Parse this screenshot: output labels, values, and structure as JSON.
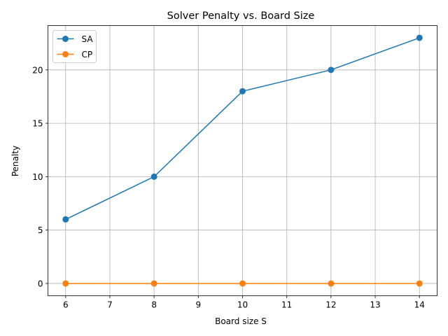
{
  "chart_data": {
    "type": "line",
    "title": "Solver Penalty vs. Board Size",
    "xlabel": "Board size S",
    "ylabel": "Penalty",
    "x": [
      6,
      8,
      10,
      12,
      14
    ],
    "xlim": [
      5.6,
      14.4
    ],
    "ylim": [
      -1.15,
      24.15
    ],
    "xticks": [
      6,
      7,
      8,
      9,
      10,
      11,
      12,
      13,
      14
    ],
    "yticks": [
      0,
      5,
      10,
      15,
      20
    ],
    "grid": true,
    "legend_position": "top-left",
    "series": [
      {
        "name": "SA",
        "color": "#1f77b4",
        "marker": "circle",
        "values": [
          6,
          10,
          18,
          20,
          23
        ]
      },
      {
        "name": "CP",
        "color": "#ff7f0e",
        "marker": "circle",
        "values": [
          0,
          0,
          0,
          0,
          0
        ]
      }
    ]
  }
}
